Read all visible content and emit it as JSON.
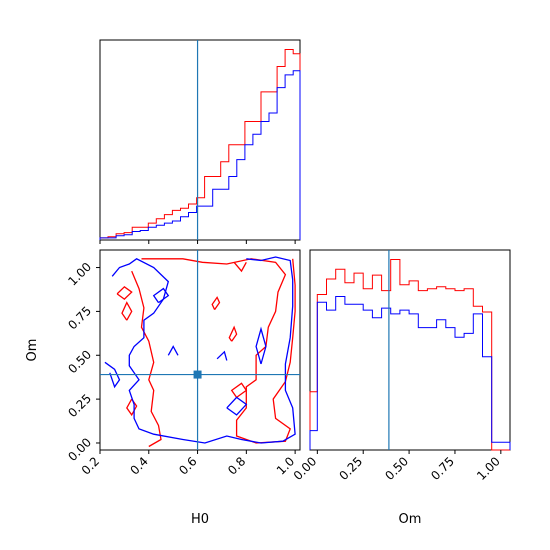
{
  "chart_data": {
    "type": "corner",
    "parameters": [
      "H0",
      "Om"
    ],
    "truths": {
      "H0": 0.6,
      "Om": 0.39
    },
    "colors": {
      "series_1": "#ff0000",
      "series_2": "#0000ff",
      "truth": "#1f77b4"
    },
    "panels": [
      {
        "id": "h0-marginal",
        "type": "histogram-step",
        "xlim": [
          0.2,
          1.02
        ],
        "bin_edges": [
          0.2,
          0.233,
          0.266,
          0.299,
          0.332,
          0.365,
          0.398,
          0.431,
          0.464,
          0.497,
          0.53,
          0.563,
          0.596,
          0.629,
          0.662,
          0.695,
          0.728,
          0.761,
          0.794,
          0.827,
          0.86,
          0.893,
          0.926,
          0.959,
          0.992,
          1.02
        ],
        "series": [
          {
            "values": [
              0.01,
              0.015,
              0.03,
              0.035,
              0.06,
              0.06,
              0.08,
              0.1,
              0.12,
              0.14,
              0.15,
              0.17,
              0.2,
              0.3,
              0.3,
              0.37,
              0.45,
              0.45,
              0.56,
              0.56,
              0.7,
              0.7,
              0.82,
              0.9,
              0.88
            ]
          },
          {
            "values": [
              0.01,
              0.01,
              0.02,
              0.025,
              0.04,
              0.045,
              0.06,
              0.07,
              0.08,
              0.09,
              0.11,
              0.13,
              0.16,
              0.16,
              0.24,
              0.24,
              0.3,
              0.38,
              0.45,
              0.5,
              0.56,
              0.6,
              0.72,
              0.78,
              0.8
            ]
          }
        ],
        "xticks": [
          0.2,
          0.4,
          0.6,
          0.8,
          1.0
        ]
      },
      {
        "id": "om-marginal",
        "type": "histogram-step",
        "xlim": [
          -0.04,
          1.05
        ],
        "bin_edges": [
          -0.04,
          0.0,
          0.05,
          0.1,
          0.15,
          0.2,
          0.25,
          0.3,
          0.35,
          0.4,
          0.45,
          0.5,
          0.55,
          0.6,
          0.65,
          0.7,
          0.75,
          0.8,
          0.85,
          0.9,
          0.95,
          1.0,
          1.05
        ],
        "series": [
          {
            "values": [
              0.3,
              0.8,
              0.88,
              0.93,
              0.86,
              0.91,
              0.83,
              0.9,
              0.82,
              0.98,
              0.85,
              0.87,
              0.82,
              0.83,
              0.84,
              0.83,
              0.82,
              0.83,
              0.74,
              0.71,
              0.0,
              0.0
            ]
          },
          {
            "values": [
              0.1,
              0.76,
              0.72,
              0.79,
              0.75,
              0.75,
              0.72,
              0.68,
              0.73,
              0.7,
              0.72,
              0.7,
              0.63,
              0.63,
              0.67,
              0.63,
              0.58,
              0.6,
              0.7,
              0.48,
              0.04,
              0.04
            ]
          }
        ],
        "xticks": [
          0.0,
          0.25,
          0.5,
          0.75,
          1.0
        ],
        "xtick_labels": [
          "0.00",
          "0.25",
          "0.50",
          "0.75",
          "1.00"
        ],
        "xlabel": "Om"
      },
      {
        "id": "joint",
        "type": "contour",
        "xlim": [
          0.2,
          1.02
        ],
        "ylim": [
          -0.04,
          1.1
        ],
        "xticks": [
          0.2,
          0.4,
          0.6,
          0.8,
          1.0
        ],
        "yticks": [
          0.0,
          0.25,
          0.5,
          0.75,
          1.0
        ],
        "ytick_labels": [
          "0.00",
          "0.25",
          "0.50",
          "0.75",
          "1.00"
        ],
        "xlabel": "H0",
        "ylabel": "Om",
        "series": [
          {
            "contours": [
              [
                [
                  0.37,
                  1.05
                ],
                [
                  0.54,
                  1.05
                ],
                [
                  0.62,
                  1.03
                ],
                [
                  0.72,
                  1.02
                ],
                [
                  0.82,
                  1.05
                ],
                [
                  0.92,
                  1.03
                ],
                [
                  0.96,
                  0.96
                ],
                [
                  0.93,
                  0.86
                ],
                [
                  0.92,
                  0.75
                ],
                [
                  0.89,
                  0.66
                ],
                [
                  0.88,
                  0.55
                ],
                [
                  0.84,
                  0.5
                ],
                [
                  0.84,
                  0.36
                ],
                [
                  0.8,
                  0.32
                ],
                [
                  0.8,
                  0.2
                ],
                [
                  0.76,
                  0.13
                ],
                [
                  0.76,
                  0.04
                ],
                [
                  0.84,
                  0.0
                ],
                [
                  0.96,
                  0.01
                ],
                [
                  0.98,
                  0.08
                ],
                [
                  0.92,
                  0.14
                ],
                [
                  0.91,
                  0.25
                ],
                [
                  0.96,
                  0.35
                ],
                [
                  0.98,
                  0.46
                ],
                [
                  0.99,
                  0.6
                ],
                [
                  1.0,
                  0.75
                ],
                [
                  1.0,
                  0.9
                ],
                [
                  0.99,
                  1.05
                ]
              ],
              [
                [
                  0.33,
                  0.98
                ],
                [
                  0.36,
                  0.88
                ],
                [
                  0.38,
                  0.77
                ],
                [
                  0.37,
                  0.66
                ],
                [
                  0.4,
                  0.58
                ],
                [
                  0.42,
                  0.46
                ],
                [
                  0.4,
                  0.36
                ],
                [
                  0.42,
                  0.3
                ],
                [
                  0.41,
                  0.18
                ],
                [
                  0.44,
                  0.1
                ],
                [
                  0.45,
                  0.02
                ],
                [
                  0.4,
                  -0.02
                ]
              ],
              [
                [
                  0.33,
                  0.25
                ],
                [
                  0.35,
                  0.21
                ],
                [
                  0.33,
                  0.16
                ],
                [
                  0.31,
                  0.2
                ],
                [
                  0.33,
                  0.25
                ]
              ],
              [
                [
                  0.31,
                  0.7
                ],
                [
                  0.33,
                  0.75
                ],
                [
                  0.31,
                  0.8
                ],
                [
                  0.29,
                  0.74
                ],
                [
                  0.31,
                  0.7
                ]
              ],
              [
                [
                  0.74,
                  0.58
                ],
                [
                  0.76,
                  0.62
                ],
                [
                  0.75,
                  0.66
                ],
                [
                  0.73,
                  0.6
                ],
                [
                  0.74,
                  0.58
                ]
              ],
              [
                [
                  0.76,
                  0.26
                ],
                [
                  0.8,
                  0.3
                ],
                [
                  0.78,
                  0.34
                ],
                [
                  0.74,
                  0.3
                ],
                [
                  0.76,
                  0.26
                ]
              ],
              [
                [
                  0.75,
                  1.03
                ],
                [
                  0.78,
                  0.98
                ],
                [
                  0.8,
                  1.03
                ]
              ],
              [
                [
                  0.27,
                  0.85
                ],
                [
                  0.3,
                  0.82
                ],
                [
                  0.33,
                  0.86
                ],
                [
                  0.3,
                  0.89
                ],
                [
                  0.27,
                  0.85
                ]
              ],
              [
                [
                  0.67,
                  0.76
                ],
                [
                  0.69,
                  0.8
                ],
                [
                  0.68,
                  0.83
                ],
                [
                  0.66,
                  0.79
                ],
                [
                  0.67,
                  0.76
                ]
              ]
            ]
          },
          {
            "contours": [
              [
                [
                  0.25,
                  0.95
                ],
                [
                  0.28,
                  1.0
                ],
                [
                  0.32,
                  1.02
                ],
                [
                  0.35,
                  1.05
                ],
                [
                  0.42,
                  1.0
                ],
                [
                  0.48,
                  0.92
                ],
                [
                  0.46,
                  0.82
                ],
                [
                  0.42,
                  0.74
                ],
                [
                  0.38,
                  0.7
                ],
                [
                  0.38,
                  0.6
                ],
                [
                  0.34,
                  0.55
                ],
                [
                  0.32,
                  0.5
                ],
                [
                  0.32,
                  0.44
                ],
                [
                  0.36,
                  0.36
                ],
                [
                  0.32,
                  0.3
                ],
                [
                  0.34,
                  0.22
                ],
                [
                  0.34,
                  0.14
                ],
                [
                  0.36,
                  0.08
                ],
                [
                  0.42,
                  0.05
                ],
                [
                  0.54,
                  0.02
                ],
                [
                  0.63,
                  0.0
                ],
                [
                  0.72,
                  0.04
                ],
                [
                  0.78,
                  0.02
                ],
                [
                  0.86,
                  0.0
                ],
                [
                  0.95,
                  0.01
                ],
                [
                  1.0,
                  0.05
                ],
                [
                  0.99,
                  0.2
                ],
                [
                  0.96,
                  0.3
                ],
                [
                  0.96,
                  0.45
                ],
                [
                  0.98,
                  0.6
                ],
                [
                  0.99,
                  0.78
                ],
                [
                  0.99,
                  0.93
                ],
                [
                  0.98,
                  1.04
                ],
                [
                  0.92,
                  1.06
                ],
                [
                  0.86,
                  1.04
                ],
                [
                  0.8,
                  1.05
                ]
              ],
              [
                [
                  0.48,
                  0.5
                ],
                [
                  0.5,
                  0.55
                ],
                [
                  0.52,
                  0.5
                ]
              ],
              [
                [
                  0.68,
                  0.48
                ],
                [
                  0.71,
                  0.52
                ],
                [
                  0.72,
                  0.47
                ]
              ],
              [
                [
                  0.72,
                  0.2
                ],
                [
                  0.76,
                  0.26
                ],
                [
                  0.8,
                  0.22
                ],
                [
                  0.76,
                  0.16
                ],
                [
                  0.72,
                  0.2
                ]
              ],
              [
                [
                  0.86,
                  0.45
                ],
                [
                  0.88,
                  0.55
                ],
                [
                  0.86,
                  0.65
                ],
                [
                  0.84,
                  0.55
                ],
                [
                  0.86,
                  0.45
                ]
              ],
              [
                [
                  0.44,
                  0.8
                ],
                [
                  0.48,
                  0.84
                ],
                [
                  0.46,
                  0.88
                ],
                [
                  0.42,
                  0.84
                ],
                [
                  0.44,
                  0.8
                ]
              ],
              [
                [
                  0.22,
                  0.46
                ],
                [
                  0.26,
                  0.42
                ],
                [
                  0.28,
                  0.36
                ],
                [
                  0.26,
                  0.32
                ],
                [
                  0.24,
                  0.4
                ]
              ]
            ]
          }
        ]
      }
    ]
  }
}
